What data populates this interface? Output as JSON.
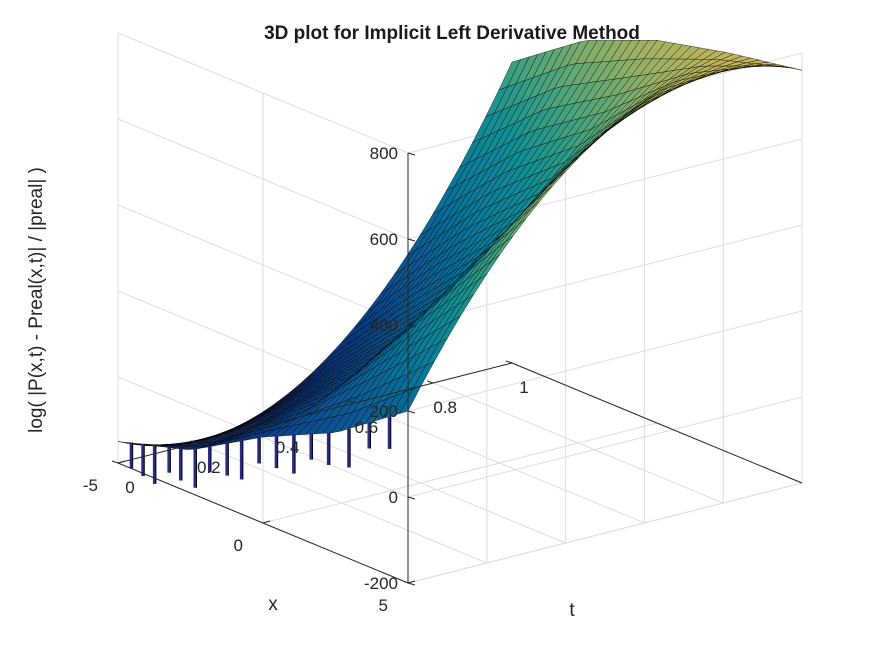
{
  "figure": {
    "title": "3D plot for Implicit Left Derivative Method"
  },
  "chart_data": {
    "type": "surface",
    "title": "3D plot for Implicit Left Derivative Method",
    "xlabel": "t",
    "ylabel": "x",
    "zlabel": "log( |P(x,t) - Preal(x,t)| / |preal| )",
    "t_range": [
      0,
      1
    ],
    "x_range": [
      -5,
      5
    ],
    "z_range": [
      -200,
      800
    ],
    "t_ticks": [
      "0",
      "0.2",
      "0.4",
      "0.6",
      "0.8",
      "1"
    ],
    "x_ticks": [
      "-5",
      "0",
      "5"
    ],
    "z_ticks": [
      "-200",
      "0",
      "200",
      "400",
      "600",
      "800"
    ],
    "grid": true,
    "colormap": "parula (dark blue → teal → olive)",
    "edge_color": "#000000",
    "surface_profile": {
      "x_samples": [
        -5,
        -2.5,
        0,
        2.5,
        5
      ],
      "z_at_t0": [
        -150,
        -100,
        0,
        80,
        200
      ],
      "z_at_t0_5": [
        -100,
        80,
        250,
        520,
        730
      ],
      "z_at_t1": [
        500,
        620,
        690,
        730,
        760
      ]
    },
    "spike_artifacts_near_t0": true
  }
}
